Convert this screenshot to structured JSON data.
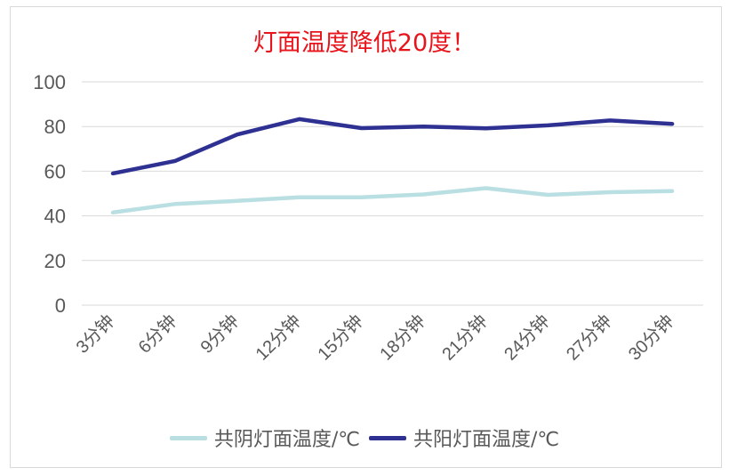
{
  "chart_data": {
    "type": "line",
    "title": "灯面温度降低20度！",
    "xlabel": "",
    "ylabel": "",
    "ylim": [
      0,
      100
    ],
    "yticks": [
      0,
      20,
      40,
      60,
      80,
      100
    ],
    "grid": true,
    "legend_position": "bottom",
    "categories": [
      "3分钟",
      "6分钟",
      "9分钟",
      "12分钟",
      "15分钟",
      "18分钟",
      "21分钟",
      "24分钟",
      "27分钟",
      "30分钟"
    ],
    "series": [
      {
        "name": "共阴灯面温度/℃",
        "color": "#B9DFE3",
        "values": [
          41.5,
          45.3,
          46.7,
          48.3,
          48.3,
          49.6,
          52.4,
          49.4,
          50.6,
          51.1
        ]
      },
      {
        "name": "共阳灯面温度/℃",
        "color": "#2E3192",
        "values": [
          59,
          64.6,
          76.4,
          83.3,
          79.3,
          80,
          79.2,
          80.5,
          82.7,
          81.2
        ]
      }
    ]
  },
  "title": "灯面温度降低20度！",
  "legend": [
    {
      "label": "共阴灯面温度/℃",
      "color": "#B9DFE3"
    },
    {
      "label": "共阳灯面温度/℃",
      "color": "#2E3192"
    }
  ]
}
